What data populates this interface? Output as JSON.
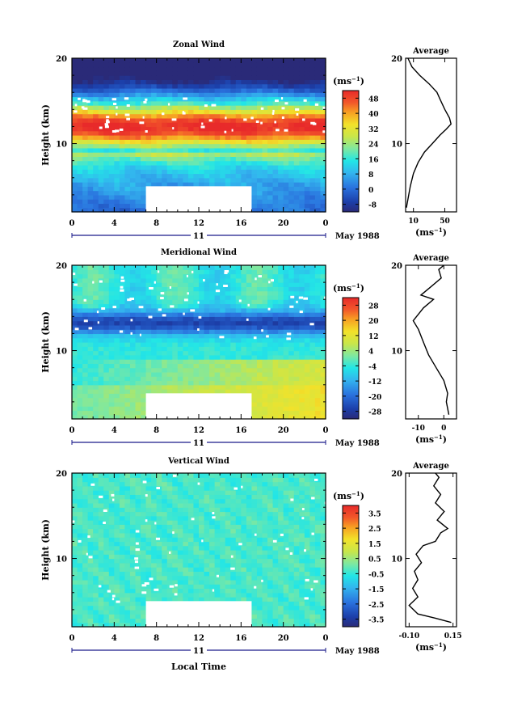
{
  "chart_data": [
    {
      "type": "heatmap",
      "title": "Zonal Wind",
      "ylabel": "Height (km)",
      "xlabel": "",
      "x_ticks": [
        "0",
        "4",
        "8",
        "12",
        "16",
        "20",
        "0"
      ],
      "xlim": [
        0,
        24
      ],
      "y_ticks": [
        "20",
        "10"
      ],
      "ylim": [
        2,
        20
      ],
      "date_axis_day": "11",
      "date_axis_label": "May 1988",
      "colorbar": {
        "unit": "(ms",
        "unit_exp": "−1",
        "unit_close": ")",
        "ticks": [
          "48",
          "40",
          "32",
          "24",
          "16",
          "8",
          "0",
          "-8"
        ],
        "range": [
          -12,
          52
        ]
      },
      "data_gap": {
        "x": [
          7,
          17
        ],
        "y": [
          2,
          5
        ]
      },
      "profile": {
        "title": "Average",
        "x_ticks": [
          "10",
          "50"
        ],
        "xlim": [
          0,
          65
        ],
        "y_ticks": [
          "20",
          "10"
        ],
        "xlabel": "(ms",
        "xlabel_exp": "−1",
        "xlabel_close": ")",
        "points": [
          [
            1,
            2.5
          ],
          [
            3,
            3.5
          ],
          [
            6,
            5
          ],
          [
            10,
            6.5
          ],
          [
            16,
            7.8
          ],
          [
            24,
            9
          ],
          [
            34,
            10
          ],
          [
            44,
            11
          ],
          [
            52,
            11.7
          ],
          [
            58,
            12.3
          ],
          [
            56,
            13
          ],
          [
            50,
            14
          ],
          [
            44,
            15.2
          ],
          [
            40,
            16
          ],
          [
            30,
            17
          ],
          [
            18,
            18
          ],
          [
            8,
            19
          ],
          [
            3,
            20
          ]
        ]
      }
    },
    {
      "type": "heatmap",
      "title": "Meridional Wind",
      "ylabel": "Height (km)",
      "xlabel": "",
      "x_ticks": [
        "0",
        "4",
        "8",
        "12",
        "16",
        "20",
        "0"
      ],
      "xlim": [
        0,
        24
      ],
      "y_ticks": [
        "20",
        "10"
      ],
      "ylim": [
        2,
        20
      ],
      "date_axis_day": "11",
      "date_axis_label": "May 1988",
      "colorbar": {
        "unit": "(ms",
        "unit_exp": "−1",
        "unit_close": ")",
        "ticks": [
          "28",
          "20",
          "12",
          "4",
          "-4",
          "-12",
          "-20",
          "-28"
        ],
        "range": [
          -32,
          32
        ]
      },
      "data_gap": {
        "x": [
          7,
          17
        ],
        "y": [
          2,
          5
        ]
      },
      "profile": {
        "title": "Average",
        "x_ticks": [
          "-10",
          "0"
        ],
        "xlim": [
          -15,
          5
        ],
        "y_ticks": [
          "20",
          "10"
        ],
        "xlabel": "(ms",
        "xlabel_exp": "−1",
        "xlabel_close": ")",
        "points": [
          [
            2,
            2.5
          ],
          [
            1,
            4
          ],
          [
            1.5,
            5
          ],
          [
            0,
            6.5
          ],
          [
            -3,
            8
          ],
          [
            -6,
            9.5
          ],
          [
            -8,
            11
          ],
          [
            -10,
            12.5
          ],
          [
            -12,
            13.5
          ],
          [
            -8,
            15
          ],
          [
            -4,
            16
          ],
          [
            -9,
            16.5
          ],
          [
            -5,
            17.5
          ],
          [
            -1,
            18.5
          ],
          [
            -2,
            19.5
          ],
          [
            0,
            20
          ]
        ]
      }
    },
    {
      "type": "heatmap",
      "title": "Vertical Wind",
      "ylabel": "Height (km)",
      "xlabel": "Local Time",
      "x_ticks": [
        "0",
        "4",
        "8",
        "12",
        "16",
        "20",
        "0"
      ],
      "xlim": [
        0,
        24
      ],
      "y_ticks": [
        "20",
        "10"
      ],
      "ylim": [
        2,
        20
      ],
      "date_axis_day": "11",
      "date_axis_label": "May 1988",
      "colorbar": {
        "unit": "(ms",
        "unit_exp": "−1",
        "unit_close": ")",
        "ticks": [
          "3.5",
          "2.5",
          "1.5",
          "0.5",
          "-0.5",
          "-1.5",
          "-2.5",
          "-3.5"
        ],
        "range": [
          -4,
          4
        ]
      },
      "data_gap": {
        "x": [
          7,
          17
        ],
        "y": [
          2,
          5
        ]
      },
      "profile": {
        "title": "Average",
        "x_ticks": [
          "-0.10",
          "0.15"
        ],
        "xlim": [
          -0.12,
          0.17
        ],
        "y_ticks": [
          "20",
          "10"
        ],
        "xlabel": "(ms",
        "xlabel_exp": "−1",
        "xlabel_close": ")",
        "points": [
          [
            0.14,
            2.5
          ],
          [
            0.05,
            3
          ],
          [
            -0.05,
            3.5
          ],
          [
            -0.1,
            4.5
          ],
          [
            -0.05,
            5.5
          ],
          [
            -0.08,
            6.5
          ],
          [
            -0.05,
            7.5
          ],
          [
            -0.07,
            8.5
          ],
          [
            -0.03,
            9.5
          ],
          [
            -0.06,
            10.5
          ],
          [
            -0.02,
            11.5
          ],
          [
            0.05,
            12
          ],
          [
            0.08,
            13
          ],
          [
            0.12,
            13.5
          ],
          [
            0.06,
            14.5
          ],
          [
            0.1,
            15.5
          ],
          [
            0.05,
            16.5
          ],
          [
            0.08,
            17.5
          ],
          [
            0.04,
            18.5
          ],
          [
            0.07,
            19.5
          ],
          [
            0.05,
            20
          ]
        ]
      }
    }
  ]
}
